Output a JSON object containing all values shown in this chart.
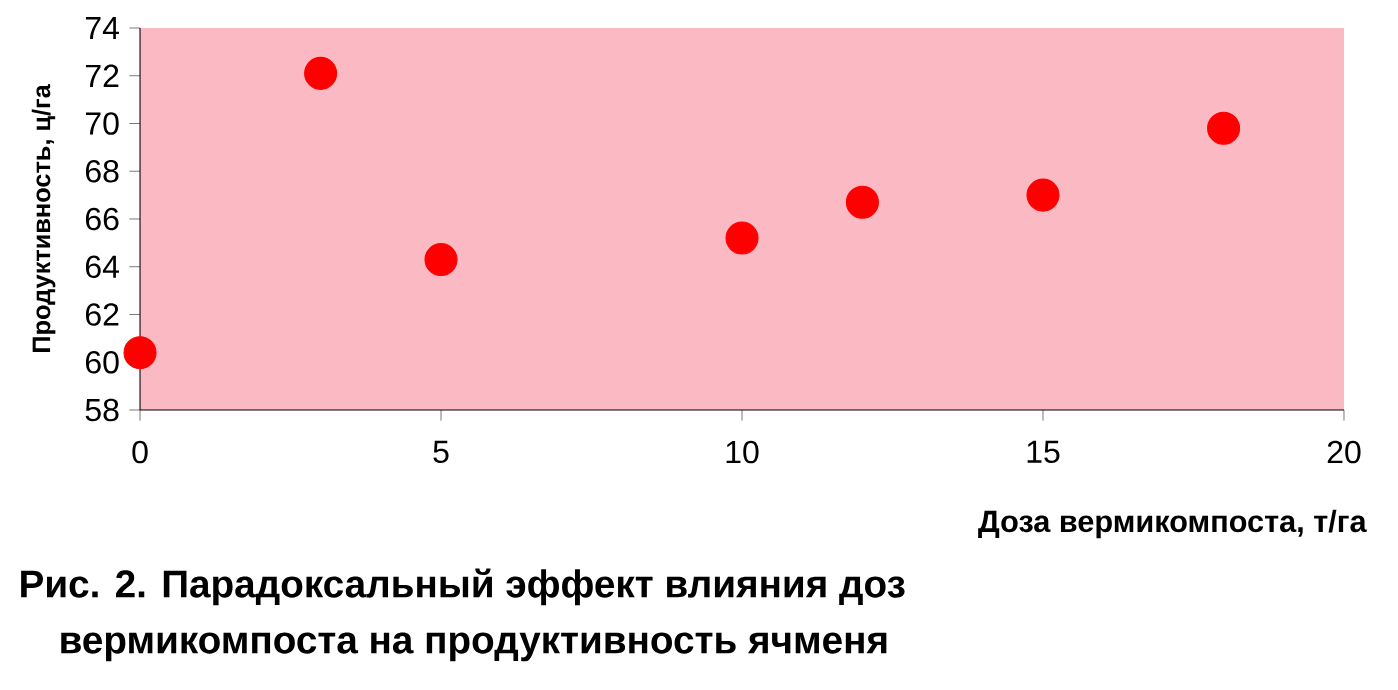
{
  "chart_data": {
    "type": "scatter",
    "title": "Рис. 2. Парадоксальный эффект влияния доз вермикомпоста на продуктивность ячменя",
    "xlabel": "Доза вермикомпоста, т/га",
    "ylabel": "Продуктивность, ц/га",
    "x": [
      0,
      3,
      5,
      10,
      12,
      15,
      18
    ],
    "values": [
      60.4,
      72.1,
      64.3,
      65.2,
      66.7,
      67.0,
      69.8
    ],
    "color": "#ff0000",
    "marker": "circle",
    "grid": false,
    "xlim": [
      0,
      20
    ],
    "xticks": [
      0,
      5,
      10,
      15,
      20
    ],
    "ylim": [
      58,
      74
    ],
    "yticks": [
      58,
      60,
      62,
      64,
      66,
      68,
      70,
      72,
      74
    ]
  }
}
